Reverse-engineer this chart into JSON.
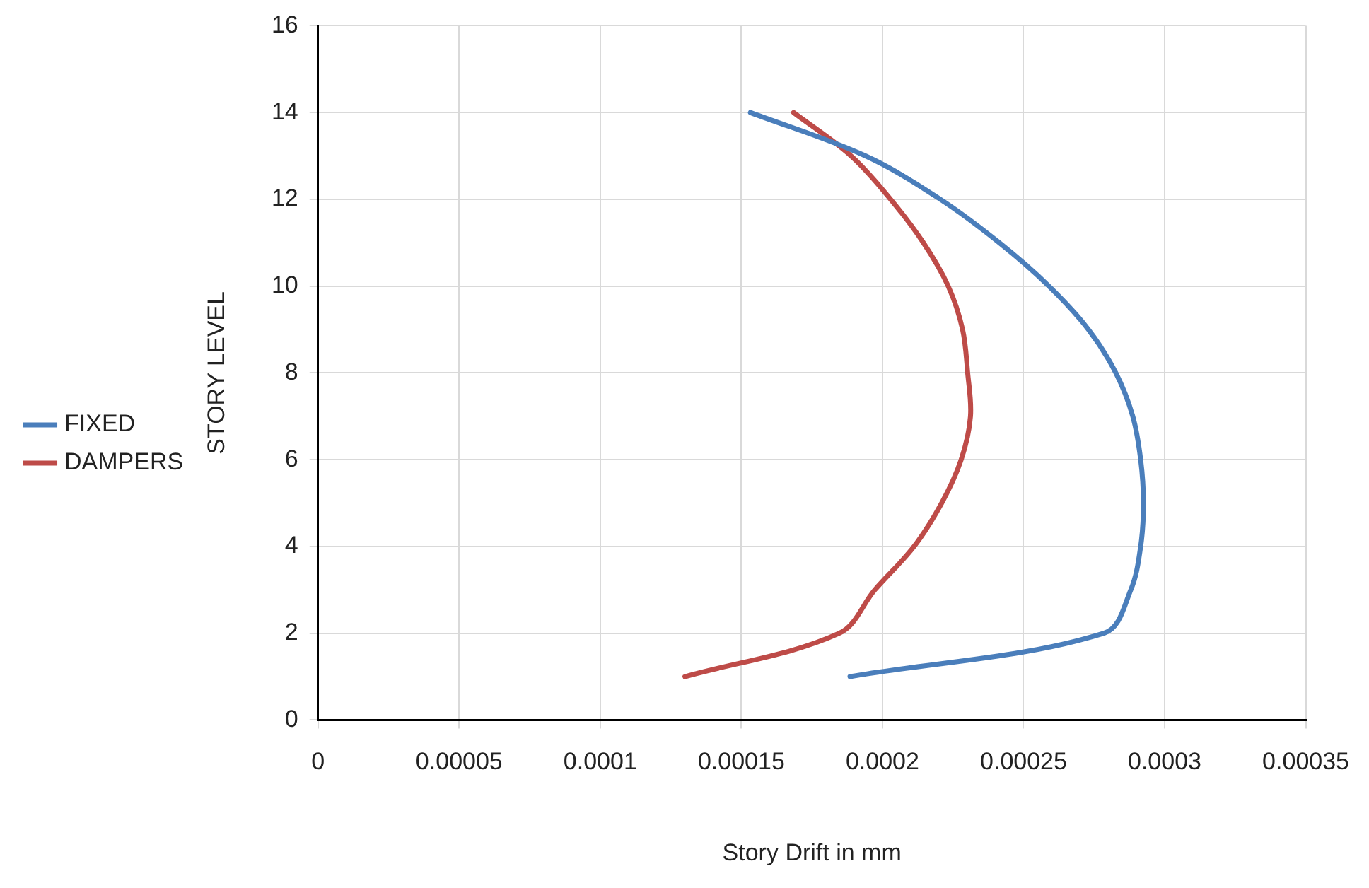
{
  "chart_data": {
    "type": "line",
    "xlabel": "Story Drift in mm",
    "ylabel": "STORY LEVEL",
    "xlim": [
      0,
      0.00035
    ],
    "xticks": [
      0,
      {
        "value": 5e-05,
        "label": "0.00005"
      },
      {
        "value": 0.0001,
        "label": "0.0001"
      },
      {
        "value": 0.00015,
        "label": "0.00015"
      },
      {
        "value": 0.0002,
        "label": "0.0002"
      },
      {
        "value": 0.00025,
        "label": "0.00025"
      },
      {
        "value": 0.0003,
        "label": "0.0003"
      },
      {
        "value": 0.00035,
        "label": "0.00035"
      }
    ],
    "ylim": [
      0,
      16
    ],
    "yticks": [
      0,
      2,
      4,
      6,
      8,
      10,
      12,
      14,
      16
    ],
    "grid": true,
    "legend": "left",
    "marker": "none",
    "line_style": "solid",
    "series": [
      {
        "name": "FIXED",
        "color": "#4a7ebb",
        "x": [
          0.0001885,
          0.0002785,
          0.000288,
          0.0002915,
          0.0002925,
          0.0002915,
          0.0002887,
          0.0002827,
          0.000273,
          0.000259,
          0.0002414,
          0.0002205,
          0.000194,
          0.0001532
        ],
        "values": [
          1,
          2,
          3,
          4,
          5,
          6,
          7,
          8,
          9,
          10,
          11,
          12,
          13,
          14
        ]
      },
      {
        "name": "DAMPERS",
        "color": "#be4b48",
        "x": [
          0.00013,
          0.0001847,
          0.0001973,
          0.0002112,
          0.000221,
          0.0002279,
          0.0002312,
          0.0002302,
          0.0002284,
          0.0002233,
          0.0002145,
          0.0002029,
          0.0001889,
          0.0001685
        ],
        "values": [
          1,
          2,
          3,
          4,
          5,
          6,
          7,
          8,
          9,
          10,
          11,
          12,
          13,
          14
        ]
      }
    ]
  }
}
